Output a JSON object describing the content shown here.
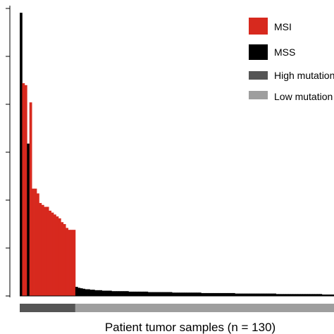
{
  "chart_data": {
    "type": "bar",
    "xlabel": "Patient tumor samples (n = 130)",
    "ylabel": "",
    "n_samples": 130,
    "ylim": [
      0,
      600
    ],
    "yticks": [
      0,
      100,
      200,
      300,
      400,
      500,
      600
    ],
    "ytick_labels": [
      "",
      "",
      "",
      "",
      "",
      "",
      ""
    ],
    "series": [
      {
        "name": "MSI",
        "values": [
          444,
          440,
          404,
          224,
          224,
          214,
          194,
          190,
          186,
          186,
          178,
          174,
          170,
          166,
          162,
          154,
          150,
          142,
          138,
          138,
          138
        ]
      },
      {
        "name": "MSS",
        "values": [
          591,
          318,
          19,
          17,
          16,
          15,
          14,
          14,
          13,
          13,
          12,
          12,
          12,
          11,
          11,
          11,
          11,
          10,
          10,
          10,
          10,
          10,
          10,
          10,
          9,
          9,
          9,
          9,
          9,
          9,
          9,
          9,
          8,
          8,
          8,
          8,
          8,
          8,
          8,
          8,
          8,
          8,
          7,
          7,
          7,
          7,
          7,
          7,
          7,
          7,
          7,
          7,
          7,
          7,
          6,
          6,
          6,
          6,
          6,
          6,
          6,
          6,
          6,
          6,
          6,
          6,
          6,
          6,
          5,
          5,
          5,
          5,
          5,
          5,
          5,
          5,
          5,
          5,
          5,
          5,
          5,
          5,
          5,
          5,
          5,
          4,
          4,
          4,
          4,
          4,
          4,
          4,
          4,
          4,
          4,
          4,
          4,
          4,
          4,
          4,
          4,
          4,
          4,
          4,
          3,
          3,
          3,
          3,
          3
        ]
      }
    ],
    "bar_order": [
      "MSS:0",
      "MSI:0",
      "MSI:1",
      "MSS:1",
      "MSI:2",
      "MSI:3",
      "MSI:4",
      "MSI:5",
      "MSI:6",
      "MSI:7",
      "MSI:8",
      "MSI:9",
      "MSI:10",
      "MSI:11",
      "MSI:12",
      "MSI:13",
      "MSI:14",
      "MSI:15",
      "MSI:16",
      "MSI:17",
      "MSI:18",
      "MSI:19",
      "MSI:20"
    ],
    "mutation_groups": [
      {
        "name": "High mutation",
        "count": 23
      },
      {
        "name": "Low mutation",
        "count": 107
      }
    ],
    "legend": {
      "placement": "top-right",
      "entries": [
        {
          "label": "MSI",
          "color": "#d7291e"
        },
        {
          "label": "MSS",
          "color": "#000000"
        },
        {
          "label": "High mutation",
          "color": "#555555"
        },
        {
          "label": "Low mutation",
          "color": "#9e9e9e"
        }
      ]
    },
    "colors": {
      "MSI": "#d7291e",
      "MSS": "#000000",
      "high": "#555555",
      "low": "#9e9e9e"
    }
  }
}
